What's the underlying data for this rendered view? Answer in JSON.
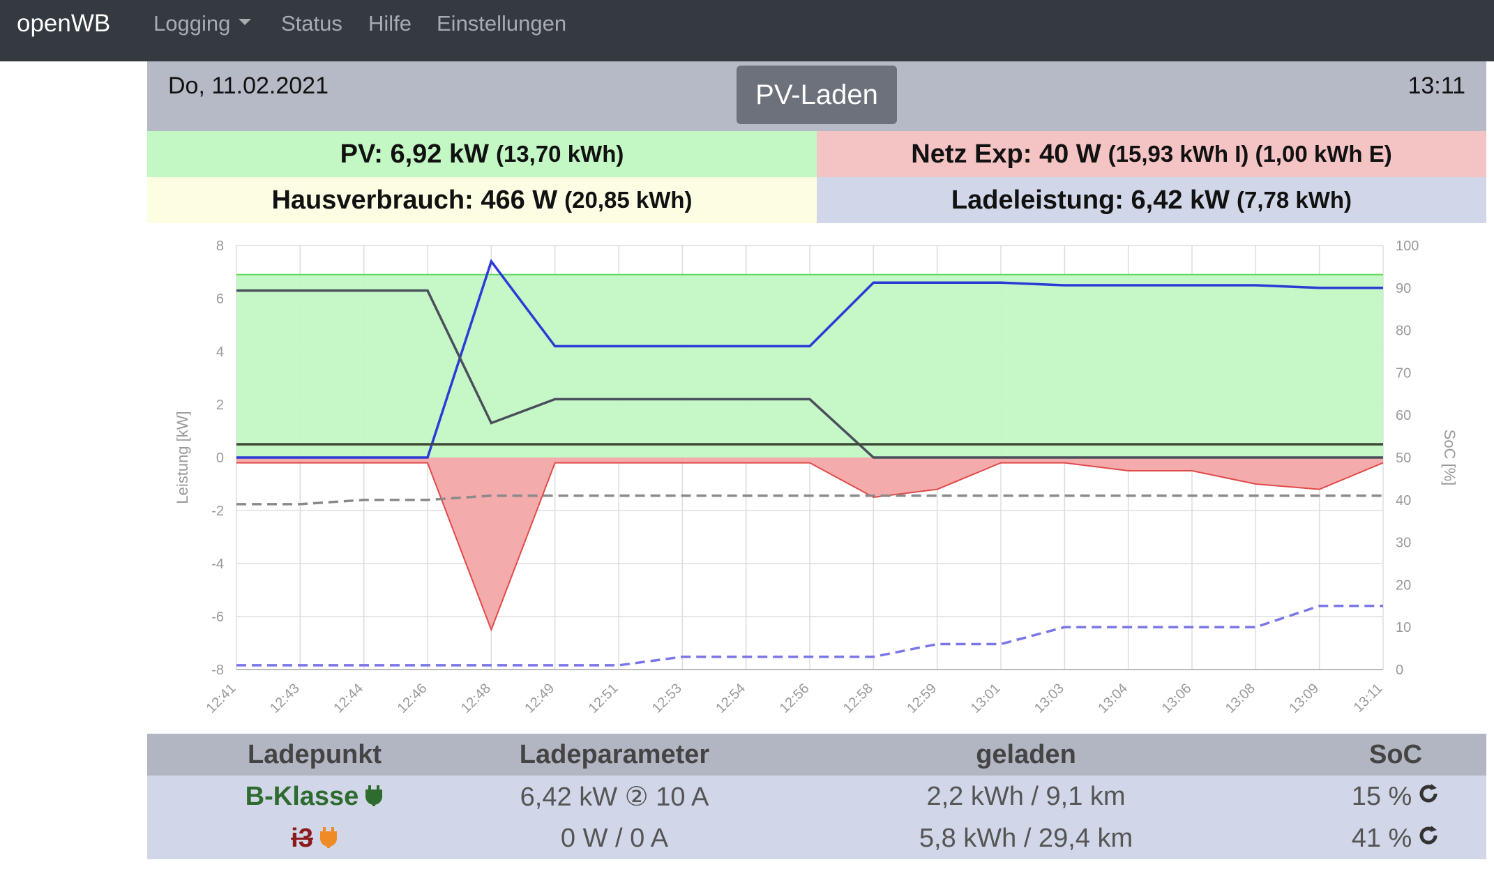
{
  "nav": {
    "brand": "openWB",
    "items": [
      "Logging",
      "Status",
      "Hilfe",
      "Einstellungen"
    ]
  },
  "header": {
    "date": "Do, 11.02.2021",
    "time": "13:11",
    "mode_button": "PV-Laden"
  },
  "tiles": {
    "pv": {
      "main": "PV: 6,92 kW",
      "sub": "(13,70 kWh)",
      "color": "#c3f7c3"
    },
    "grid": {
      "main": "Netz Exp: 40 W",
      "sub": "(15,93 kWh I) (1,00 kWh E)",
      "color": "#f4c3c3"
    },
    "house": {
      "main": "Hausverbrauch: 466 W",
      "sub": "(20,85 kWh)",
      "color": "#fcfde3"
    },
    "charge": {
      "main": "Ladeleistung: 6,42 kW",
      "sub": "(7,78 kWh)",
      "color": "#d1d7e8"
    }
  },
  "chart_data": {
    "type": "area",
    "ylabel": "Leistung [kW]",
    "y2label": "SoC [%]",
    "ylim": [
      -8,
      8
    ],
    "y2lim": [
      0,
      100
    ],
    "yticks": [
      "8",
      "6",
      "4",
      "2",
      "0",
      "-2",
      "-4",
      "-6",
      "-8"
    ],
    "y2ticks": [
      "100",
      "90",
      "80",
      "70",
      "60",
      "50",
      "40",
      "30",
      "20",
      "10",
      "0"
    ],
    "xticks": [
      "12:41",
      "12:43",
      "12:44",
      "12:46",
      "12:48",
      "12:49",
      "12:51",
      "12:53",
      "12:54",
      "12:56",
      "12:58",
      "12:59",
      "13:01",
      "13:03",
      "13:04",
      "13:06",
      "13:08",
      "13:09",
      "13:11"
    ],
    "grid": true,
    "series": [
      {
        "color": "#5fd85f",
        "fill": "#c3f7c3",
        "values": [
          6.9,
          6.9,
          6.9,
          6.9,
          6.9,
          6.9,
          6.9,
          6.9,
          6.9,
          6.9,
          6.9,
          6.9,
          6.9,
          6.9,
          6.9,
          6.9,
          6.9,
          6.9,
          6.9
        ]
      },
      {
        "color": "#e04a4a",
        "fill": "#f3a7a7",
        "values": [
          -0.2,
          -0.2,
          -0.2,
          -0.2,
          -6.5,
          -0.2,
          -0.2,
          -0.2,
          -0.2,
          -0.2,
          -1.5,
          -1.2,
          -0.2,
          -0.2,
          -0.5,
          -0.5,
          -1.0,
          -1.2,
          -0.2
        ]
      },
      {
        "color": "#2b3bd6",
        "values": [
          0,
          0,
          0,
          0,
          7.4,
          4.2,
          4.2,
          4.2,
          4.2,
          4.2,
          6.6,
          6.6,
          6.6,
          6.5,
          6.5,
          6.5,
          6.5,
          6.4,
          6.4
        ]
      },
      {
        "color": "#4a4f5c",
        "values": [
          6.3,
          6.3,
          6.3,
          6.3,
          1.3,
          2.2,
          2.2,
          2.2,
          2.2,
          2.2,
          0,
          0,
          0,
          0,
          0,
          0,
          0,
          0,
          0
        ]
      },
      {
        "color": "#3c4a36",
        "values": [
          0.5,
          0.5,
          0.5,
          0.5,
          0.5,
          0.5,
          0.5,
          0.5,
          0.5,
          0.5,
          0.5,
          0.5,
          0.5,
          0.5,
          0.5,
          0.5,
          0.5,
          0.5,
          0.5
        ]
      },
      {
        "color": "#8a8a8a",
        "axis": "soc",
        "values": [
          39,
          39,
          40,
          40,
          41,
          41,
          41,
          41,
          41,
          41,
          41,
          41,
          41,
          41,
          41,
          41,
          41,
          41,
          41
        ]
      },
      {
        "color": "#7b76e8",
        "axis": "soc",
        "values": [
          1,
          1,
          1,
          1,
          1,
          1,
          1,
          3,
          3,
          3,
          3,
          6,
          6,
          10,
          10,
          10,
          10,
          15,
          15
        ]
      }
    ]
  },
  "table": {
    "headers": [
      "Ladepunkt",
      "Ladeparameter",
      "geladen",
      "SoC"
    ],
    "rows": [
      {
        "name": "B-Klasse",
        "name_color": "#2e6b2e",
        "params": "6,42 kW ② 10 A",
        "charged": "2,2 kWh / 9,1 km",
        "soc": "15 %",
        "plug_color": "#2e6b2e"
      },
      {
        "name": "i3",
        "name_color": "#8b1a1a",
        "params": "0 W / 0 A",
        "charged": "5,8 kWh / 29,4 km",
        "soc": "41 %",
        "plug_color": "#f08a24"
      }
    ]
  }
}
